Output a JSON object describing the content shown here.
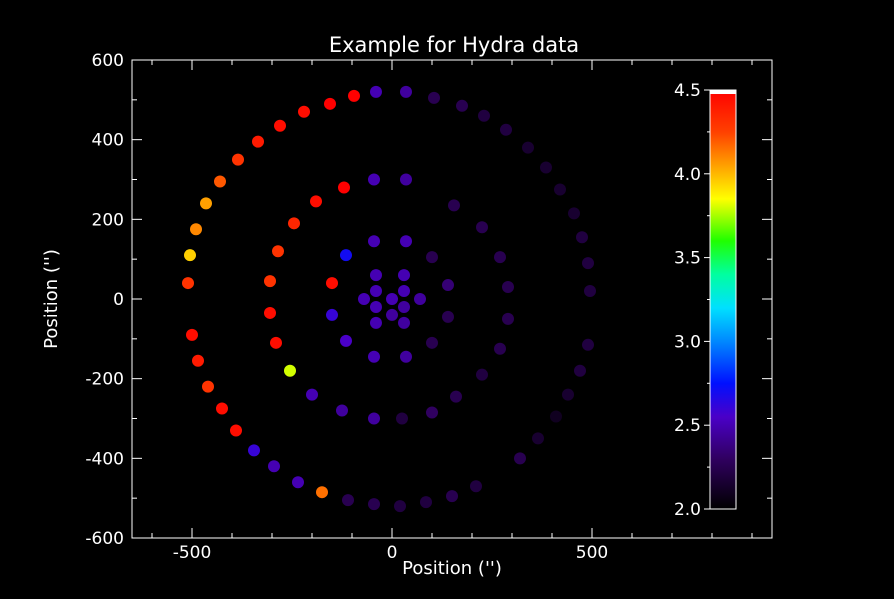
{
  "chart_data": {
    "type": "scatter",
    "title": "Example for Hydra data",
    "xlabel": "Position ('')",
    "ylabel": "Position ('')",
    "xlim": [
      -650,
      950
    ],
    "ylim": [
      -600,
      600
    ],
    "x_ticks": [
      -500,
      0,
      500
    ],
    "y_ticks": [
      -600,
      -400,
      -200,
      0,
      200,
      400,
      600
    ],
    "grid": false,
    "colorbar": {
      "range": [
        2.0,
        4.5
      ],
      "ticks": [
        "2.0",
        "2.5",
        "3.0",
        "3.5",
        "4.0",
        "4.5"
      ],
      "colormap": "rainbow"
    },
    "points": [
      {
        "x": -40,
        "y": 520,
        "v": 2.5
      },
      {
        "x": 35,
        "y": 520,
        "v": 2.45
      },
      {
        "x": 105,
        "y": 505,
        "v": 2.25
      },
      {
        "x": 175,
        "y": 485,
        "v": 2.25
      },
      {
        "x": 230,
        "y": 460,
        "v": 2.2
      },
      {
        "x": 285,
        "y": 425,
        "v": 2.2
      },
      {
        "x": 340,
        "y": 380,
        "v": 2.15
      },
      {
        "x": 385,
        "y": 330,
        "v": 2.15
      },
      {
        "x": 420,
        "y": 275,
        "v": 2.15
      },
      {
        "x": 455,
        "y": 215,
        "v": 2.15
      },
      {
        "x": 475,
        "y": 155,
        "v": 2.2
      },
      {
        "x": 490,
        "y": 90,
        "v": 2.2
      },
      {
        "x": 495,
        "y": 20,
        "v": 2.2
      },
      {
        "x": 500,
        "y": -50,
        "v": 2.0
      },
      {
        "x": 490,
        "y": -115,
        "v": 2.2
      },
      {
        "x": 470,
        "y": -180,
        "v": 2.2
      },
      {
        "x": 440,
        "y": -240,
        "v": 2.15
      },
      {
        "x": 410,
        "y": -295,
        "v": 2.1
      },
      {
        "x": 365,
        "y": -350,
        "v": 2.15
      },
      {
        "x": 320,
        "y": -400,
        "v": 2.25
      },
      {
        "x": 210,
        "y": -470,
        "v": 2.2
      },
      {
        "x": 150,
        "y": -495,
        "v": 2.25
      },
      {
        "x": 85,
        "y": -510,
        "v": 2.2
      },
      {
        "x": 20,
        "y": -520,
        "v": 2.2
      },
      {
        "x": -45,
        "y": -515,
        "v": 2.25
      },
      {
        "x": -110,
        "y": -505,
        "v": 2.25
      },
      {
        "x": -175,
        "y": -485,
        "v": 4.15
      },
      {
        "x": -235,
        "y": -460,
        "v": 2.5
      },
      {
        "x": -295,
        "y": -420,
        "v": 2.5
      },
      {
        "x": -345,
        "y": -380,
        "v": 2.6
      },
      {
        "x": -390,
        "y": -330,
        "v": 4.45
      },
      {
        "x": -425,
        "y": -275,
        "v": 4.45
      },
      {
        "x": -460,
        "y": -220,
        "v": 4.3
      },
      {
        "x": -485,
        "y": -155,
        "v": 4.4
      },
      {
        "x": -500,
        "y": -90,
        "v": 4.45
      },
      {
        "x": -510,
        "y": 40,
        "v": 4.3
      },
      {
        "x": -505,
        "y": 110,
        "v": 3.95
      },
      {
        "x": -490,
        "y": 175,
        "v": 4.1
      },
      {
        "x": -465,
        "y": 240,
        "v": 4.05
      },
      {
        "x": -430,
        "y": 295,
        "v": 4.2
      },
      {
        "x": -385,
        "y": 350,
        "v": 4.3
      },
      {
        "x": -335,
        "y": 395,
        "v": 4.4
      },
      {
        "x": -280,
        "y": 435,
        "v": 4.45
      },
      {
        "x": -220,
        "y": 470,
        "v": 4.45
      },
      {
        "x": -155,
        "y": 490,
        "v": 4.5
      },
      {
        "x": -95,
        "y": 510,
        "v": 4.5
      },
      {
        "x": -45,
        "y": 300,
        "v": 2.5
      },
      {
        "x": 35,
        "y": 300,
        "v": 2.45
      },
      {
        "x": 155,
        "y": 235,
        "v": 2.25
      },
      {
        "x": 225,
        "y": 180,
        "v": 2.25
      },
      {
        "x": 270,
        "y": 105,
        "v": 2.25
      },
      {
        "x": 290,
        "y": 30,
        "v": 2.25
      },
      {
        "x": 290,
        "y": -50,
        "v": 2.25
      },
      {
        "x": 270,
        "y": -125,
        "v": 2.25
      },
      {
        "x": 225,
        "y": -190,
        "v": 2.2
      },
      {
        "x": 160,
        "y": -245,
        "v": 2.25
      },
      {
        "x": 100,
        "y": -285,
        "v": 2.3
      },
      {
        "x": 25,
        "y": -300,
        "v": 2.2
      },
      {
        "x": -45,
        "y": -300,
        "v": 2.45
      },
      {
        "x": -125,
        "y": -280,
        "v": 2.45
      },
      {
        "x": -200,
        "y": -240,
        "v": 2.5
      },
      {
        "x": -255,
        "y": -180,
        "v": 3.8
      },
      {
        "x": -290,
        "y": -110,
        "v": 4.45
      },
      {
        "x": -305,
        "y": -35,
        "v": 4.45
      },
      {
        "x": -305,
        "y": 45,
        "v": 4.3
      },
      {
        "x": -285,
        "y": 120,
        "v": 4.3
      },
      {
        "x": -245,
        "y": 190,
        "v": 4.35
      },
      {
        "x": -190,
        "y": 245,
        "v": 4.45
      },
      {
        "x": -120,
        "y": 280,
        "v": 4.5
      },
      {
        "x": -45,
        "y": 145,
        "v": 2.5
      },
      {
        "x": 35,
        "y": 145,
        "v": 2.5
      },
      {
        "x": 100,
        "y": 105,
        "v": 2.25
      },
      {
        "x": 140,
        "y": 35,
        "v": 2.35
      },
      {
        "x": 140,
        "y": -45,
        "v": 2.25
      },
      {
        "x": 100,
        "y": -110,
        "v": 2.25
      },
      {
        "x": 35,
        "y": -145,
        "v": 2.45
      },
      {
        "x": -45,
        "y": -145,
        "v": 2.5
      },
      {
        "x": -115,
        "y": -105,
        "v": 2.55
      },
      {
        "x": -150,
        "y": -40,
        "v": 2.6
      },
      {
        "x": -150,
        "y": 40,
        "v": 4.45
      },
      {
        "x": -115,
        "y": 110,
        "v": 2.7
      },
      {
        "x": -40,
        "y": 60,
        "v": 2.5
      },
      {
        "x": 30,
        "y": 60,
        "v": 2.5
      },
      {
        "x": -70,
        "y": 0,
        "v": 2.5
      },
      {
        "x": 0,
        "y": 0,
        "v": 2.5
      },
      {
        "x": 70,
        "y": 0,
        "v": 2.45
      },
      {
        "x": -40,
        "y": 20,
        "v": 2.5
      },
      {
        "x": 30,
        "y": 20,
        "v": 2.5
      },
      {
        "x": -40,
        "y": -20,
        "v": 2.5
      },
      {
        "x": 30,
        "y": -20,
        "v": 2.45
      },
      {
        "x": 0,
        "y": -40,
        "v": 2.45
      },
      {
        "x": -40,
        "y": -60,
        "v": 2.5
      },
      {
        "x": 30,
        "y": -60,
        "v": 2.45
      }
    ]
  }
}
